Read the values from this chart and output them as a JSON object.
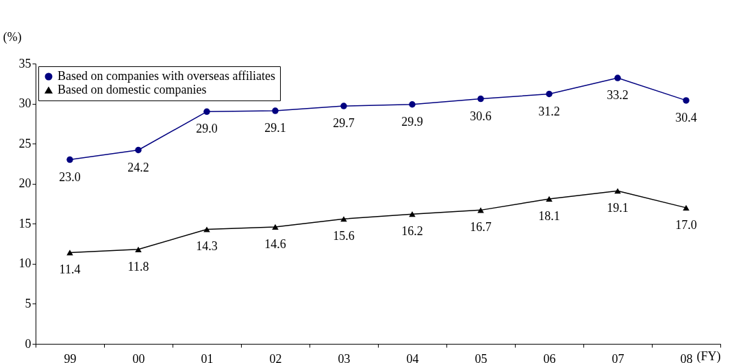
{
  "chart_data": {
    "type": "line",
    "ylabel": "(%)",
    "xlabel": "(FY)",
    "categories": [
      "99",
      "00",
      "01",
      "02",
      "03",
      "04",
      "05",
      "06",
      "07",
      "08"
    ],
    "series": [
      {
        "name": "Based on companies with overseas affiliates",
        "color": "#000080",
        "marker": "circle",
        "line_style": "solid",
        "values": [
          23.0,
          24.2,
          29.0,
          29.1,
          29.7,
          29.9,
          30.6,
          31.2,
          33.2,
          30.4
        ],
        "value_labels": [
          "23.0",
          "24.2",
          "29.0",
          "29.1",
          "29.7",
          "29.9",
          "30.6",
          "31.2",
          "33.2",
          "30.4"
        ]
      },
      {
        "name": "Based on domestic companies",
        "color": "#000000",
        "marker": "triangle",
        "line_style": "solid",
        "values": [
          11.4,
          11.8,
          14.3,
          14.6,
          15.6,
          16.2,
          16.7,
          18.1,
          19.1,
          17.0
        ],
        "value_labels": [
          "11.4",
          "11.8",
          "14.3",
          "14.6",
          "15.6",
          "16.2",
          "16.7",
          "18.1",
          "19.1",
          "17.0"
        ]
      }
    ],
    "ylim": [
      0,
      35
    ],
    "yticks": [
      0,
      5,
      10,
      15,
      20,
      25,
      30,
      35
    ],
    "legend": "top left"
  }
}
